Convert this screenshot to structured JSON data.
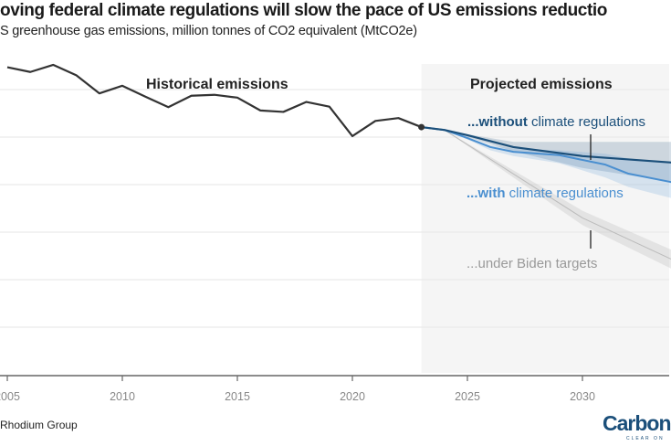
{
  "title": "oving federal climate regulations will slow the pace of US emissions reductio",
  "subtitle": "S greenhouse gas emissions, million tonnes of CO2 equivalent (MtCO2e)",
  "source": "Rhodium Group",
  "logo": {
    "text": "Carbon",
    "tagline": "CLEAR ON"
  },
  "colors": {
    "historical": "#333333",
    "without": "#1b4f7a",
    "with": "#4a8fd0",
    "biden": "#bbbbbb",
    "projection_bg": "#f5f5f5"
  },
  "chart_data": {
    "type": "line",
    "xlabel": "",
    "ylabel": "",
    "xlim": [
      2005,
      2034
    ],
    "ylim": [
      0,
      6700
    ],
    "grid": true,
    "x_ticks": [
      "2005",
      "2010",
      "2015",
      "2020",
      "2025",
      "2030"
    ],
    "y_gridlines": [
      1000,
      2000,
      3000,
      4000,
      5000,
      6000
    ],
    "annotations": {
      "historical": "Historical emissions",
      "projected": "Projected emissions"
    },
    "series": [
      {
        "name": "Historical emissions",
        "x": [
          2005,
          2006,
          2007,
          2008,
          2009,
          2010,
          2011,
          2012,
          2013,
          2014,
          2015,
          2016,
          2017,
          2018,
          2019,
          2020,
          2021,
          2022,
          2023
        ],
        "y": [
          6470,
          6370,
          6520,
          6300,
          5920,
          6080,
          5850,
          5630,
          5870,
          5890,
          5830,
          5560,
          5530,
          5740,
          5640,
          5020,
          5340,
          5400,
          5210
        ]
      },
      {
        "name": "...without climate regulations",
        "label_bold": "...without",
        "label_rest": " climate regulations",
        "x": [
          2023,
          2024,
          2025,
          2027,
          2030,
          2034
        ],
        "y": [
          5210,
          5150,
          5040,
          4790,
          4600,
          4460
        ],
        "band_low": [
          5210,
          5150,
          5000,
          4700,
          4350,
          4050
        ],
        "band_high": [
          5210,
          5150,
          5060,
          4900,
          4900,
          4900
        ]
      },
      {
        "name": "...with climate regulations",
        "label_bold": "...with",
        "label_rest": " climate regulations",
        "x": [
          2023,
          2024,
          2025,
          2026,
          2027,
          2029,
          2031,
          2032,
          2034
        ],
        "y": [
          5210,
          5150,
          4980,
          4790,
          4690,
          4620,
          4420,
          4230,
          4040
        ],
        "band_low": [
          5210,
          5150,
          4950,
          4720,
          4600,
          4450,
          4150,
          3950,
          3700
        ],
        "band_high": [
          5210,
          5150,
          5000,
          4830,
          4760,
          4720,
          4650,
          4550,
          4450
        ]
      },
      {
        "name": "...under Biden targets",
        "x": [
          2023,
          2024,
          2030,
          2034
        ],
        "y": [
          5210,
          5150,
          3300,
          2400
        ],
        "band_low": [
          5210,
          5150,
          3150,
          2200
        ],
        "band_high": [
          5210,
          5150,
          3450,
          2600
        ]
      }
    ]
  }
}
